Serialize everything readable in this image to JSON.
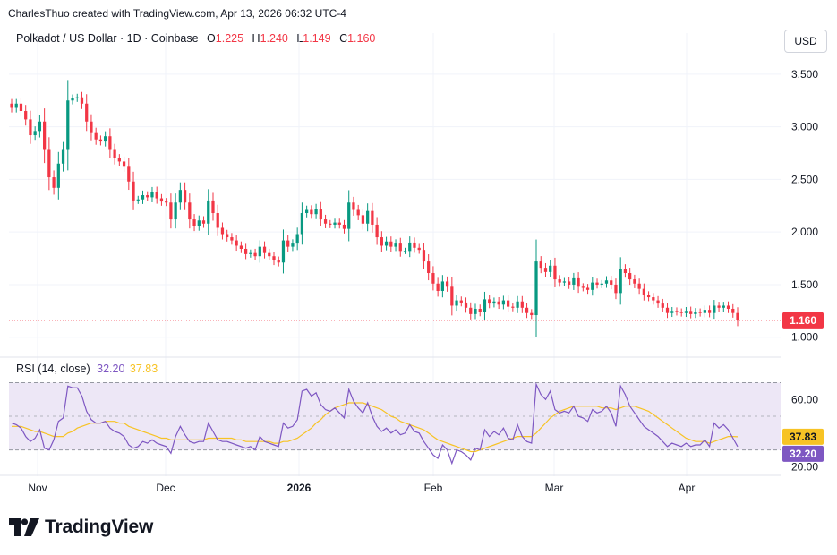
{
  "header": {
    "attribution": "CharlesThuo created with TradingView.com, Apr 13, 2026 06:32 UTC-4"
  },
  "legend": {
    "symbol": "Polkadot / US Dollar · 1D · Coinbase",
    "open_label": "O",
    "open": "1.225",
    "high_label": "H",
    "high": "1.240",
    "low_label": "L",
    "low": "1.149",
    "close_label": "C",
    "close": "1.160"
  },
  "currency_button": "USD",
  "rsi_legend": {
    "label": "RSI (14, close)",
    "rsi_value": "32.20",
    "ma_value": "37.83"
  },
  "logo_text": "TradingView",
  "colors": {
    "up": "#089981",
    "down": "#f23645",
    "rsi_line": "#7e57c2",
    "rsi_ma": "#f7c325",
    "rsi_band": "#ede7f6",
    "grid": "#f0f3fa"
  },
  "chart_data": [
    {
      "type": "candlestick",
      "title": "Polkadot / US Dollar · 1D · Coinbase",
      "price_axis_ticks": [
        "3.500",
        "3.000",
        "2.500",
        "2.000",
        "1.500",
        "1.000"
      ],
      "price_axis_values": [
        3.5,
        3.0,
        2.5,
        2.0,
        1.5,
        1.0
      ],
      "ylim": [
        0.87,
        3.72
      ],
      "last_price_label": "1.160",
      "last_price": 1.16,
      "x_ticks": [
        "Nov",
        "Dec",
        "2026",
        "Feb",
        "Mar",
        "Apr"
      ],
      "x_tick_bold": [
        false,
        false,
        true,
        false,
        false,
        false
      ],
      "close_values": [
        3.18,
        3.22,
        3.15,
        3.07,
        2.92,
        2.96,
        3.05,
        2.78,
        2.52,
        2.42,
        2.65,
        2.78,
        3.25,
        3.27,
        3.28,
        3.22,
        3.05,
        2.94,
        2.88,
        2.86,
        2.91,
        2.78,
        2.7,
        2.67,
        2.62,
        2.48,
        2.3,
        2.31,
        2.35,
        2.33,
        2.38,
        2.32,
        2.29,
        2.28,
        2.12,
        2.28,
        2.4,
        2.28,
        2.12,
        2.06,
        2.11,
        2.08,
        2.3,
        2.18,
        2.04,
        1.98,
        1.95,
        1.92,
        1.87,
        1.84,
        1.79,
        1.8,
        1.77,
        1.86,
        1.8,
        1.77,
        1.73,
        1.71,
        1.92,
        1.86,
        1.89,
        1.98,
        2.18,
        2.21,
        2.17,
        2.22,
        2.12,
        2.08,
        2.07,
        2.09,
        2.07,
        2.03,
        2.28,
        2.21,
        2.16,
        2.08,
        2.2,
        2.07,
        1.95,
        1.87,
        1.91,
        1.86,
        1.89,
        1.82,
        1.82,
        1.9,
        1.85,
        1.83,
        1.72,
        1.61,
        1.51,
        1.44,
        1.53,
        1.48,
        1.3,
        1.35,
        1.33,
        1.28,
        1.22,
        1.27,
        1.24,
        1.36,
        1.32,
        1.34,
        1.31,
        1.35,
        1.29,
        1.28,
        1.34,
        1.28,
        1.23,
        1.21,
        1.72,
        1.66,
        1.62,
        1.68,
        1.55,
        1.52,
        1.53,
        1.5,
        1.56,
        1.48,
        1.47,
        1.45,
        1.52,
        1.5,
        1.51,
        1.54,
        1.5,
        1.42,
        1.65,
        1.61,
        1.55,
        1.51,
        1.46,
        1.4,
        1.38,
        1.35,
        1.32,
        1.28,
        1.23,
        1.25,
        1.24,
        1.23,
        1.25,
        1.22,
        1.24,
        1.23,
        1.26,
        1.23,
        1.3,
        1.28,
        1.3,
        1.27,
        1.23,
        1.16
      ]
    },
    {
      "type": "line",
      "title": "RSI (14, close)",
      "axis_ticks": [
        "60.00",
        "20.00"
      ],
      "axis_values": [
        60,
        20
      ],
      "ylim": [
        17,
        82
      ],
      "band": [
        30,
        70
      ],
      "rsi_label": "32.20",
      "ma_label": "37.83",
      "series": [
        {
          "name": "RSI",
          "values": [
            46,
            45,
            43,
            38,
            35,
            37,
            42,
            31,
            30,
            36,
            47,
            49,
            68,
            67,
            67,
            62,
            53,
            48,
            46,
            46,
            47,
            43,
            41,
            40,
            38,
            33,
            31,
            32,
            35,
            34,
            36,
            34,
            33,
            32,
            28,
            38,
            44,
            39,
            35,
            34,
            35,
            35,
            46,
            41,
            36,
            35,
            35,
            34,
            33,
            32,
            31,
            32,
            30,
            38,
            35,
            34,
            33,
            32,
            46,
            43,
            44,
            48,
            65,
            66,
            62,
            64,
            57,
            54,
            53,
            55,
            52,
            49,
            66,
            59,
            55,
            52,
            58,
            50,
            44,
            41,
            43,
            40,
            42,
            39,
            40,
            45,
            41,
            40,
            35,
            31,
            27,
            25,
            33,
            30,
            22,
            30,
            29,
            27,
            24,
            31,
            30,
            42,
            38,
            41,
            39,
            43,
            37,
            36,
            45,
            38,
            35,
            34,
            69,
            63,
            60,
            65,
            54,
            52,
            53,
            52,
            56,
            50,
            49,
            47,
            54,
            52,
            53,
            56,
            52,
            44,
            68,
            63,
            56,
            52,
            48,
            44,
            42,
            40,
            38,
            35,
            32,
            34,
            33,
            32,
            34,
            32,
            33,
            33,
            36,
            32,
            46,
            43,
            45,
            42,
            37,
            32
          ]
        },
        {
          "name": "MA",
          "values": [
            44,
            44,
            44,
            43,
            42,
            41,
            41,
            40,
            39,
            38,
            38,
            38,
            40,
            41,
            43,
            44,
            45,
            46,
            46,
            46,
            47,
            47,
            47,
            46,
            46,
            44,
            43,
            42,
            41,
            40,
            39,
            38,
            37,
            37,
            36,
            36,
            36,
            36,
            36,
            36,
            36,
            36,
            37,
            37,
            37,
            37,
            37,
            37,
            36,
            36,
            35,
            35,
            35,
            35,
            35,
            35,
            34,
            34,
            35,
            35,
            36,
            37,
            39,
            41,
            43,
            46,
            48,
            51,
            53,
            55,
            56,
            57,
            58,
            58,
            58,
            58,
            57,
            56,
            55,
            54,
            52,
            50,
            49,
            47,
            46,
            45,
            44,
            43,
            42,
            40,
            38,
            36,
            35,
            34,
            33,
            32,
            31,
            30,
            29,
            29,
            30,
            31,
            32,
            33,
            34,
            35,
            36,
            37,
            38,
            38,
            38,
            38,
            40,
            43,
            46,
            49,
            51,
            53,
            54,
            55,
            56,
            56,
            56,
            56,
            56,
            56,
            55,
            55,
            55,
            54,
            55,
            56,
            56,
            56,
            55,
            54,
            53,
            51,
            49,
            47,
            45,
            43,
            41,
            39,
            37,
            36,
            35,
            35,
            35,
            34,
            35,
            36,
            37,
            38,
            38,
            37.83
          ]
        }
      ]
    }
  ]
}
